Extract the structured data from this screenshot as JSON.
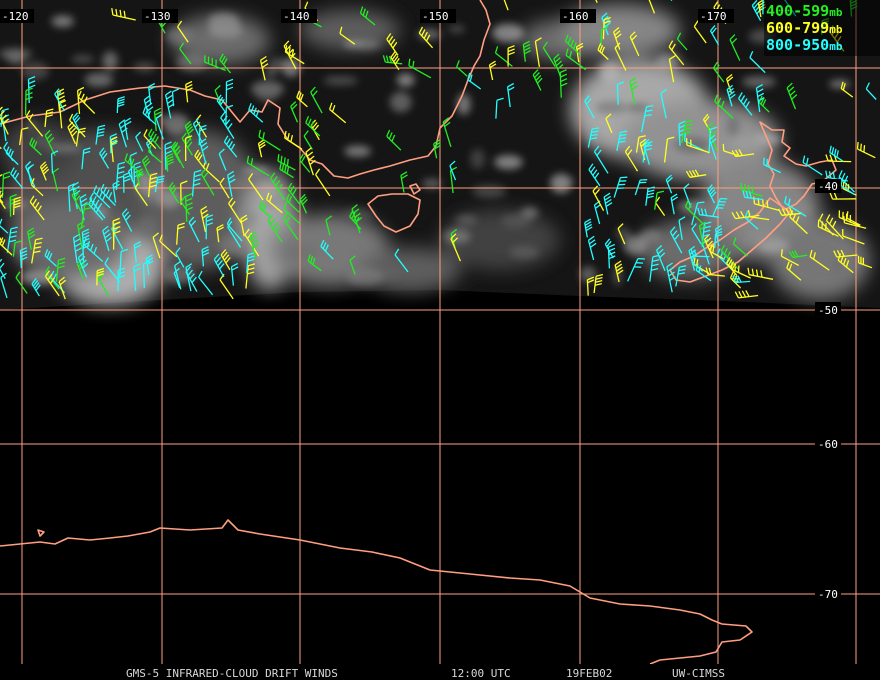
{
  "colors": {
    "grid": "#ff9f80",
    "coast": "#ff9f80",
    "layer_400_599": "#22ee22",
    "layer_600_799": "#ffff22",
    "layer_800_950": "#22ffff",
    "cloud": "#b8b8b8"
  },
  "longitude_labels": [
    "-120",
    "-130",
    "-140",
    "-150",
    "-160",
    "-170"
  ],
  "latitude_labels": [
    "-40",
    "-50",
    "-60",
    "-70"
  ],
  "legend": [
    {
      "label": "400-599",
      "unit": "mb",
      "color_key": "layer_400_599"
    },
    {
      "label": "600-799",
      "unit": "mb",
      "color_key": "layer_600_799"
    },
    {
      "label": "800-950",
      "unit": "mb",
      "color_key": "layer_800_950"
    }
  ],
  "footer": {
    "product": "GMS-5 INFRARED-CLOUD DRIFT WINDS",
    "time": "12:00 UTC",
    "date": "19FEB02",
    "source": "UW-CIMSS"
  },
  "features": [
    "coastlines",
    "cloud-imagery",
    "wind-barbs",
    "lat-lon-grid"
  ]
}
